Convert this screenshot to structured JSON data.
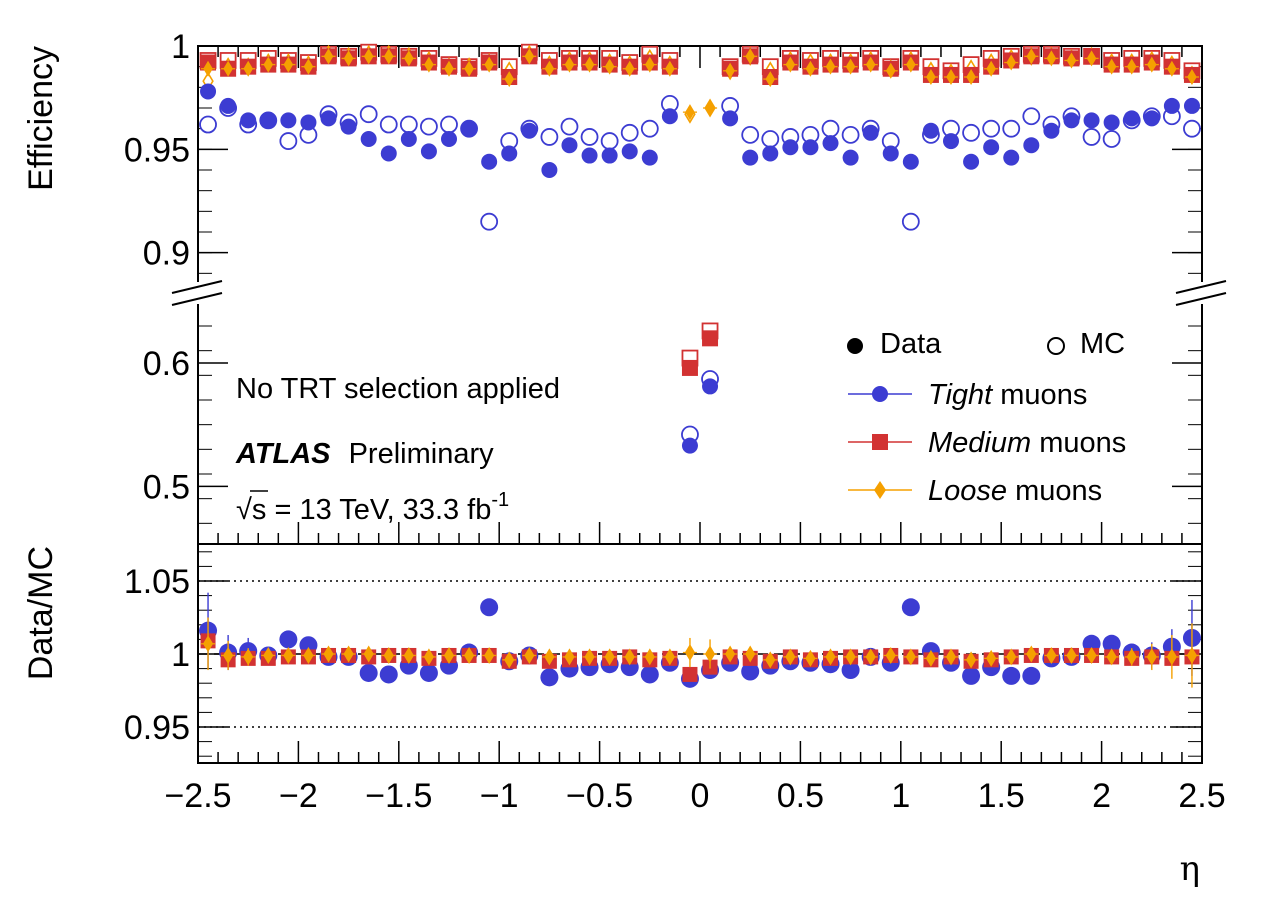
{
  "chart_data": {
    "type": "scatter",
    "title": "",
    "xlabel": "η",
    "ylabel_top": "Efficiency",
    "ylabel_bottom": "Data/MC",
    "xlim": [
      -2.5,
      2.5
    ],
    "x_tick_labels": [
      "−2.5",
      "−2",
      "−1.5",
      "−1",
      "−0.5",
      "0",
      "0.5",
      "1",
      "1.5",
      "2",
      "2.5"
    ],
    "y_axis_break": true,
    "upper_ylim": [
      0.88,
      1.0
    ],
    "upper_tick_labels": [
      "1",
      "0.95",
      "0.9"
    ],
    "lower_ylim": [
      0.46,
      0.645
    ],
    "lower_tick_labels": [
      "0.6",
      "0.5"
    ],
    "ratio_ylim": [
      0.925,
      1.075
    ],
    "ratio_tick_labels": [
      "1.05",
      "1",
      "0.95"
    ],
    "ratio_gridlines": [
      1.05,
      1.0,
      0.95
    ],
    "annotations": {
      "selection": "No TRT selection applied",
      "experiment": "ATLAS",
      "status": "Preliminary",
      "sqrt_sym": "√",
      "s_letter": "s",
      "energy": " = 13 TeV, 33.3 fb",
      "lumi_exp": "-1"
    },
    "legend": {
      "placement": "right",
      "data_label": "Data",
      "mc_label": "MC",
      "tight_name": "Tight",
      "medium_name": "Medium",
      "loose_name": "Loose",
      "suffix": " muons"
    },
    "colors": {
      "tight": "#3c3cd2",
      "medium": "#d23232",
      "loose": "#f5a000"
    },
    "eta": [
      -2.45,
      -2.35,
      -2.25,
      -2.15,
      -2.05,
      -1.95,
      -1.85,
      -1.75,
      -1.65,
      -1.55,
      -1.45,
      -1.35,
      -1.25,
      -1.15,
      -1.05,
      -0.95,
      -0.85,
      -0.75,
      -0.65,
      -0.55,
      -0.45,
      -0.35,
      -0.25,
      -0.15,
      -0.05,
      0.05,
      0.15,
      0.25,
      0.35,
      0.45,
      0.55,
      0.65,
      0.75,
      0.85,
      0.95,
      1.05,
      1.15,
      1.25,
      1.35,
      1.45,
      1.55,
      1.65,
      1.75,
      1.85,
      1.95,
      2.05,
      2.15,
      2.25,
      2.35,
      2.45
    ],
    "series": [
      {
        "name": "Tight",
        "kind": "data",
        "values": [
          0.978,
          0.971,
          0.964,
          0.964,
          0.964,
          0.963,
          0.965,
          0.961,
          0.955,
          0.948,
          0.955,
          0.949,
          0.955,
          0.96,
          0.944,
          0.948,
          0.959,
          0.94,
          0.952,
          0.947,
          0.947,
          0.949,
          0.946,
          0.966,
          0.533,
          0.581,
          0.965,
          0.946,
          0.948,
          0.951,
          0.951,
          0.953,
          0.946,
          0.958,
          0.948,
          0.944,
          0.959,
          0.954,
          0.944,
          0.951,
          0.946,
          0.952,
          0.959,
          0.964,
          0.964,
          0.963,
          0.965,
          0.965,
          0.971,
          0.971
        ]
      },
      {
        "name": "Tight",
        "kind": "mc",
        "values": [
          0.962,
          0.97,
          0.962,
          0.964,
          0.954,
          0.957,
          0.967,
          0.963,
          0.967,
          0.962,
          0.962,
          0.961,
          0.962,
          0.96,
          0.915,
          0.954,
          0.96,
          0.956,
          0.961,
          0.956,
          0.954,
          0.958,
          0.96,
          0.972,
          0.542,
          0.587,
          0.971,
          0.957,
          0.955,
          0.956,
          0.957,
          0.96,
          0.957,
          0.96,
          0.954,
          0.915,
          0.957,
          0.96,
          0.958,
          0.96,
          0.96,
          0.966,
          0.962,
          0.966,
          0.956,
          0.955,
          0.964,
          0.966,
          0.966,
          0.96
        ]
      },
      {
        "name": "Medium",
        "kind": "data",
        "values": [
          0.992,
          0.989,
          0.99,
          0.991,
          0.991,
          0.99,
          0.995,
          0.994,
          0.995,
          0.995,
          0.994,
          0.992,
          0.99,
          0.989,
          0.992,
          0.985,
          0.995,
          0.99,
          0.992,
          0.992,
          0.991,
          0.99,
          0.992,
          0.99,
          0.596,
          0.62,
          0.989,
          0.995,
          0.985,
          0.992,
          0.99,
          0.991,
          0.991,
          0.992,
          0.989,
          0.992,
          0.986,
          0.986,
          0.986,
          0.99,
          0.993,
          0.995,
          0.995,
          0.994,
          0.995,
          0.991,
          0.991,
          0.992,
          0.99,
          0.986
        ]
      },
      {
        "name": "Medium",
        "kind": "mc",
        "values": [
          0.993,
          0.993,
          0.993,
          0.994,
          0.993,
          0.992,
          0.996,
          0.995,
          0.997,
          0.996,
          0.995,
          0.994,
          0.991,
          0.99,
          0.993,
          0.99,
          0.997,
          0.993,
          0.994,
          0.994,
          0.994,
          0.992,
          0.996,
          0.993,
          0.604,
          0.626,
          0.99,
          0.996,
          0.99,
          0.994,
          0.993,
          0.994,
          0.993,
          0.994,
          0.99,
          0.994,
          0.99,
          0.988,
          0.991,
          0.994,
          0.995,
          0.996,
          0.996,
          0.995,
          0.995,
          0.993,
          0.994,
          0.994,
          0.993,
          0.988
        ]
      },
      {
        "name": "Loose",
        "kind": "data",
        "values": [
          0.989,
          0.989,
          0.989,
          0.991,
          0.991,
          0.99,
          0.995,
          0.994,
          0.995,
          0.995,
          0.994,
          0.991,
          0.989,
          0.989,
          0.991,
          0.984,
          0.995,
          0.989,
          0.991,
          0.991,
          0.99,
          0.989,
          0.991,
          0.989,
          0.968,
          0.97,
          0.988,
          0.995,
          0.984,
          0.991,
          0.989,
          0.99,
          0.99,
          0.991,
          0.988,
          0.991,
          0.985,
          0.985,
          0.985,
          0.989,
          0.992,
          0.995,
          0.994,
          0.993,
          0.994,
          0.99,
          0.99,
          0.991,
          0.989,
          0.985
        ]
      },
      {
        "name": "Loose",
        "kind": "mc",
        "values": [
          0.983,
          0.99,
          0.99,
          0.992,
          0.992,
          0.991,
          0.996,
          0.995,
          0.996,
          0.996,
          0.995,
          0.993,
          0.99,
          0.99,
          0.992,
          0.988,
          0.996,
          0.991,
          0.993,
          0.993,
          0.992,
          0.991,
          0.994,
          0.991,
          0.967,
          0.97,
          0.988,
          0.995,
          0.988,
          0.993,
          0.992,
          0.992,
          0.992,
          0.993,
          0.989,
          0.993,
          0.988,
          0.987,
          0.989,
          0.992,
          0.994,
          0.995,
          0.995,
          0.994,
          0.995,
          0.992,
          0.992,
          0.993,
          0.991,
          0.986
        ]
      }
    ],
    "ratio_series": [
      {
        "name": "Tight",
        "values": [
          1.016,
          1.001,
          1.002,
          0.999,
          1.01,
          1.006,
          0.998,
          0.998,
          0.987,
          0.986,
          0.992,
          0.987,
          0.992,
          1.001,
          1.032,
          0.995,
          0.999,
          0.984,
          0.99,
          0.991,
          0.993,
          0.991,
          0.986,
          0.994,
          0.983,
          0.989,
          0.994,
          0.988,
          0.992,
          0.995,
          0.994,
          0.993,
          0.989,
          0.998,
          0.994,
          1.032,
          1.002,
          0.994,
          0.985,
          0.991,
          0.985,
          0.985,
          0.997,
          0.998,
          1.007,
          1.007,
          1.001,
          0.999,
          1.005,
          1.011
        ]
      },
      {
        "name": "Medium",
        "values": [
          1.009,
          0.996,
          0.997,
          0.997,
          0.998,
          0.998,
          0.999,
          0.999,
          0.998,
          0.999,
          0.999,
          0.997,
          0.999,
          0.999,
          0.999,
          0.995,
          0.998,
          0.995,
          0.996,
          0.997,
          0.997,
          0.998,
          0.996,
          0.997,
          0.986,
          0.991,
          0.998,
          0.997,
          0.995,
          0.998,
          0.996,
          0.997,
          0.998,
          0.998,
          0.999,
          0.998,
          0.996,
          0.998,
          0.995,
          0.996,
          0.998,
          0.999,
          0.999,
          0.999,
          0.999,
          0.998,
          0.997,
          0.998,
          0.997,
          0.998
        ]
      },
      {
        "name": "Loose",
        "values": [
          1.007,
          0.999,
          0.998,
          0.999,
          0.999,
          0.999,
          1.0,
          1.0,
          1.0,
          0.999,
          0.999,
          0.998,
          0.999,
          0.999,
          0.999,
          0.996,
          0.999,
          0.998,
          0.998,
          0.998,
          0.998,
          0.998,
          0.998,
          0.998,
          1.001,
          1.0,
          1.0,
          1.0,
          0.996,
          0.998,
          0.997,
          0.998,
          0.998,
          0.998,
          0.999,
          0.998,
          0.997,
          0.998,
          0.996,
          0.997,
          0.998,
          1.0,
          0.999,
          0.999,
          0.999,
          0.998,
          0.998,
          0.998,
          0.998,
          0.999
        ]
      }
    ],
    "ratio_errors": {
      "Tight": [
        0.026,
        0.012,
        0.009,
        0.005,
        0.005,
        0.005,
        0.004,
        0.004,
        0.004,
        0.004,
        0.004,
        0.004,
        0.004,
        0.004,
        0.004,
        0.004,
        0.004,
        0.004,
        0.004,
        0.004,
        0.004,
        0.004,
        0.004,
        0.004,
        0.004,
        0.004,
        0.004,
        0.004,
        0.004,
        0.004,
        0.004,
        0.004,
        0.004,
        0.004,
        0.004,
        0.004,
        0.004,
        0.004,
        0.004,
        0.004,
        0.004,
        0.004,
        0.004,
        0.004,
        0.005,
        0.005,
        0.005,
        0.009,
        0.012,
        0.026
      ],
      "Loose": [
        0.018,
        0.01,
        0.006,
        0.004,
        0.003,
        0.003,
        0.003,
        0.003,
        0.003,
        0.003,
        0.003,
        0.003,
        0.003,
        0.003,
        0.003,
        0.003,
        0.003,
        0.003,
        0.003,
        0.003,
        0.003,
        0.003,
        0.003,
        0.003,
        0.01,
        0.01,
        0.003,
        0.003,
        0.003,
        0.003,
        0.003,
        0.003,
        0.003,
        0.003,
        0.003,
        0.003,
        0.003,
        0.003,
        0.003,
        0.003,
        0.003,
        0.003,
        0.003,
        0.003,
        0.003,
        0.004,
        0.006,
        0.009,
        0.015,
        0.022
      ]
    }
  }
}
